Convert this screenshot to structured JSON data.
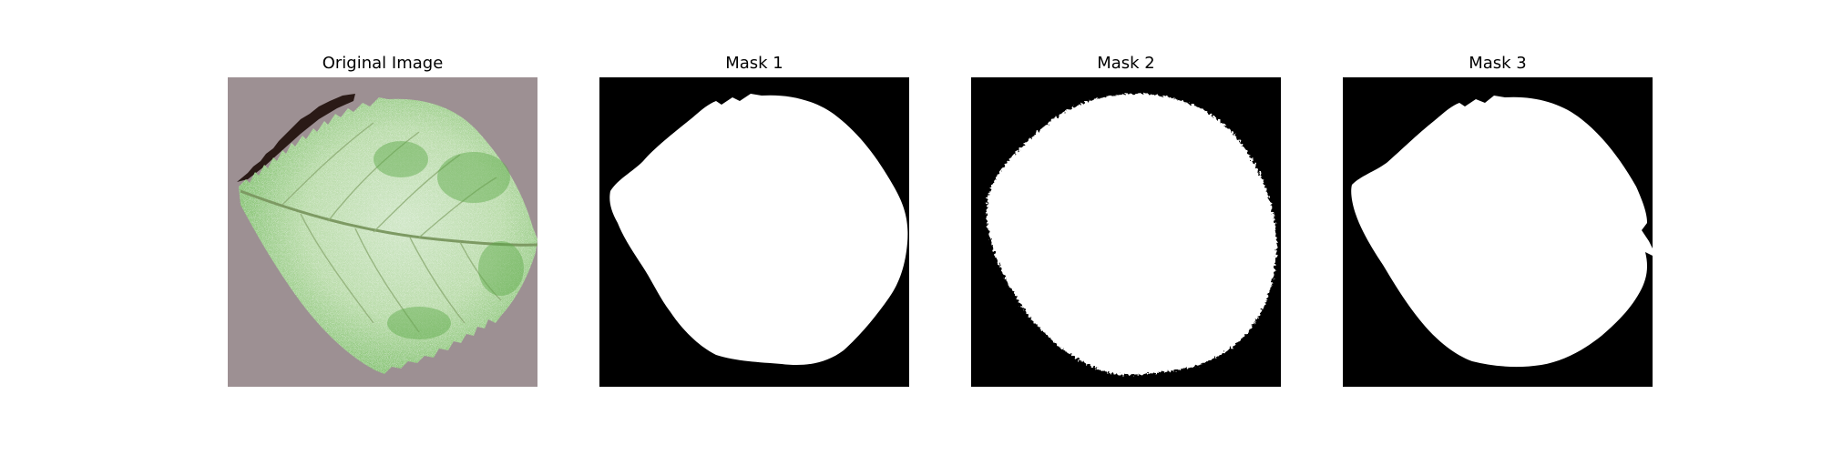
{
  "panels": [
    {
      "title": "Original Image"
    },
    {
      "title": "Mask 1"
    },
    {
      "title": "Mask 2"
    },
    {
      "title": "Mask 3"
    }
  ],
  "colors": {
    "figure_background": "#ffffff",
    "mask_background": "#000000",
    "mask_foreground": "#ffffff",
    "image_background": "#9d9093",
    "leaf_light": "#e8f3e4",
    "leaf_green": "#6fb45c",
    "leaf_shadow": "#2a1a16"
  },
  "icons": {
    "original": "leaf-photo",
    "masks": "binary-leaf-mask"
  }
}
